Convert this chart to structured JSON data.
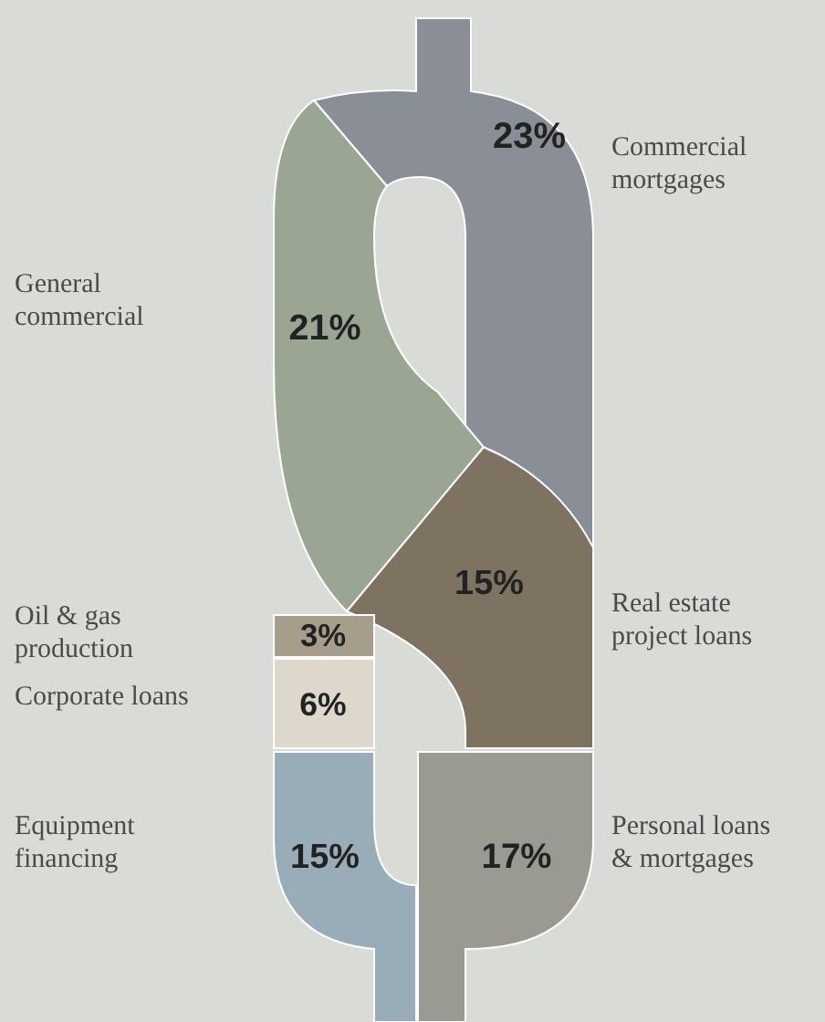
{
  "chart_data": {
    "type": "other",
    "categories": [
      "Commercial mortgages",
      "General commercial",
      "Real estate project loans",
      "Oil & gas production",
      "Corporate loans",
      "Equipment financing",
      "Personal loans & mortgages"
    ],
    "values": [
      23,
      21,
      15,
      3,
      6,
      15,
      17
    ],
    "value_labels": [
      "23%",
      "21%",
      "15%",
      "3%",
      "6%",
      "15%",
      "17%"
    ],
    "colors": [
      "#8a8e96",
      "#9aa593",
      "#7d7360",
      "#a69e8a",
      "#ddd8cb",
      "#98adb8",
      "#9a9a92"
    ]
  }
}
